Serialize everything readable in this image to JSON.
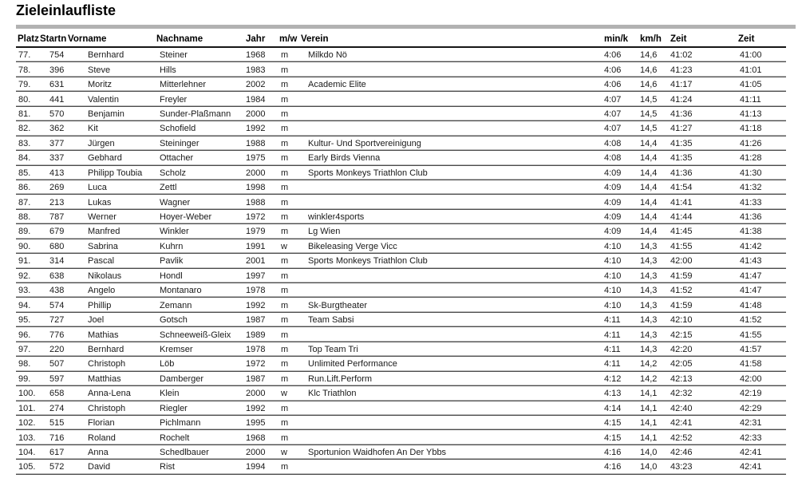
{
  "title": "Zieleinlaufliste",
  "table": {
    "headers": [
      "Platz",
      "Startn",
      "Vorname",
      "Nachname",
      "Jahr",
      "m/w",
      "Verein",
      "min/k",
      "km/h",
      "Zeit",
      "Zeit"
    ],
    "rows": [
      [
        "77.",
        "754",
        "Bernhard",
        "Steiner",
        "1968",
        "m",
        "Milkdo Nö",
        "4:06",
        "14,6",
        "41:02",
        "41:00"
      ],
      [
        "78.",
        "396",
        "Steve",
        "Hills",
        "1983",
        "m",
        "",
        "4:06",
        "14,6",
        "41:23",
        "41:01"
      ],
      [
        "79.",
        "631",
        "Moritz",
        "Mitterlehner",
        "2002",
        "m",
        "Academic Elite",
        "4:06",
        "14,6",
        "41:17",
        "41:05"
      ],
      [
        "80.",
        "441",
        "Valentin",
        "Freyler",
        "1984",
        "m",
        "",
        "4:07",
        "14,5",
        "41:24",
        "41:11"
      ],
      [
        "81.",
        "570",
        "Benjamin",
        "Sunder-Plaßmann",
        "2000",
        "m",
        "",
        "4:07",
        "14,5",
        "41:36",
        "41:13"
      ],
      [
        "82.",
        "362",
        "Kit",
        "Schofield",
        "1992",
        "m",
        "",
        "4:07",
        "14,5",
        "41:27",
        "41:18"
      ],
      [
        "83.",
        "377",
        "Jürgen",
        "Steininger",
        "1988",
        "m",
        "Kultur- Und Sportvereinigung",
        "4:08",
        "14,4",
        "41:35",
        "41:26"
      ],
      [
        "84.",
        "337",
        "Gebhard",
        "Ottacher",
        "1975",
        "m",
        "Early Birds Vienna",
        "4:08",
        "14,4",
        "41:35",
        "41:28"
      ],
      [
        "85.",
        "413",
        "Philipp Toubia",
        "Scholz",
        "2000",
        "m",
        "Sports Monkeys Triathlon Club",
        "4:09",
        "14,4",
        "41:36",
        "41:30"
      ],
      [
        "86.",
        "269",
        "Luca",
        "Zettl",
        "1998",
        "m",
        "",
        "4:09",
        "14,4",
        "41:54",
        "41:32"
      ],
      [
        "87.",
        "213",
        "Lukas",
        "Wagner",
        "1988",
        "m",
        "",
        "4:09",
        "14,4",
        "41:41",
        "41:33"
      ],
      [
        "88.",
        "787",
        "Werner",
        "Hoyer-Weber",
        "1972",
        "m",
        "winkler4sports",
        "4:09",
        "14,4",
        "41:44",
        "41:36"
      ],
      [
        "89.",
        "679",
        "Manfred",
        "Winkler",
        "1979",
        "m",
        "Lg Wien",
        "4:09",
        "14,4",
        "41:45",
        "41:38"
      ],
      [
        "90.",
        "680",
        "Sabrina",
        "Kuhrn",
        "1991",
        "w",
        "Bikeleasing Verge Vicc",
        "4:10",
        "14,3",
        "41:55",
        "41:42"
      ],
      [
        "91.",
        "314",
        "Pascal",
        "Pavlik",
        "2001",
        "m",
        "Sports Monkeys Triathlon Club",
        "4:10",
        "14,3",
        "42:00",
        "41:43"
      ],
      [
        "92.",
        "638",
        "Nikolaus",
        "Hondl",
        "1997",
        "m",
        "",
        "4:10",
        "14,3",
        "41:59",
        "41:47"
      ],
      [
        "93.",
        "438",
        "Angelo",
        "Montanaro",
        "1978",
        "m",
        "",
        "4:10",
        "14,3",
        "41:52",
        "41:47"
      ],
      [
        "94.",
        "574",
        "Phillip",
        "Zemann",
        "1992",
        "m",
        "Sk-Burgtheater",
        "4:10",
        "14,3",
        "41:59",
        "41:48"
      ],
      [
        "95.",
        "727",
        "Joel",
        "Gotsch",
        "1987",
        "m",
        "Team Sabsi",
        "4:11",
        "14,3",
        "42:10",
        "41:52"
      ],
      [
        "96.",
        "776",
        "Mathias",
        "Schneeweiß-Gleix",
        "1989",
        "m",
        "",
        "4:11",
        "14,3",
        "42:15",
        "41:55"
      ],
      [
        "97.",
        "220",
        "Bernhard",
        "Kremser",
        "1978",
        "m",
        "Top Team Tri",
        "4:11",
        "14,3",
        "42:20",
        "41:57"
      ],
      [
        "98.",
        "507",
        "Christoph",
        "Löb",
        "1972",
        "m",
        "Unlimited Performance",
        "4:11",
        "14,2",
        "42:05",
        "41:58"
      ],
      [
        "99.",
        "597",
        "Matthias",
        "Damberger",
        "1987",
        "m",
        "Run.Lift.Perform",
        "4:12",
        "14,2",
        "42:13",
        "42:00"
      ],
      [
        "100.",
        "658",
        "Anna-Lena",
        "Klein",
        "2000",
        "w",
        "Klc Triathlon",
        "4:13",
        "14,1",
        "42:32",
        "42:19"
      ],
      [
        "101.",
        "274",
        "Christoph",
        "Riegler",
        "1992",
        "m",
        "",
        "4:14",
        "14,1",
        "42:40",
        "42:29"
      ],
      [
        "102.",
        "515",
        "Florian",
        "Pichlmann",
        "1995",
        "m",
        "",
        "4:15",
        "14,1",
        "42:41",
        "42:31"
      ],
      [
        "103.",
        "716",
        "Roland",
        "Rochelt",
        "1968",
        "m",
        "",
        "4:15",
        "14,1",
        "42:52",
        "42:33"
      ],
      [
        "104.",
        "617",
        "Anna",
        "Schedlbauer",
        "2000",
        "w",
        "Sportunion Waidhofen An Der Ybbs",
        "4:16",
        "14,0",
        "42:46",
        "42:41"
      ],
      [
        "105.",
        "572",
        "David",
        "Rist",
        "1994",
        "m",
        "",
        "4:16",
        "14,0",
        "43:23",
        "42:41"
      ]
    ]
  }
}
